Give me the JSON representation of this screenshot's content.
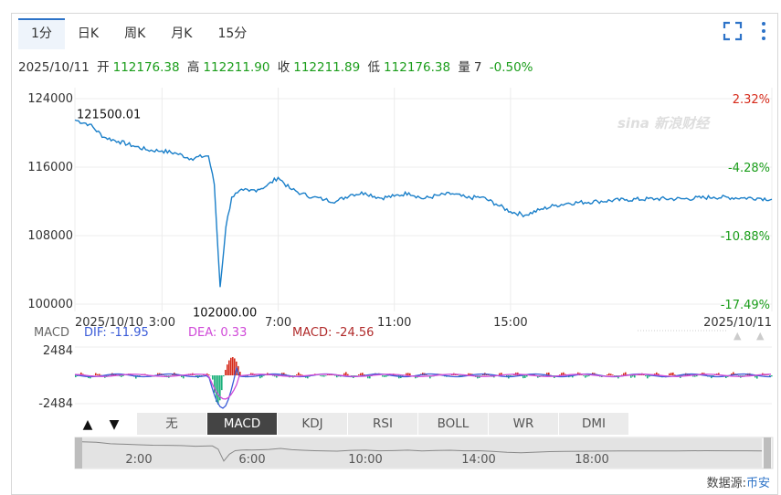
{
  "tabs": [
    {
      "label": "1分",
      "active": true
    },
    {
      "label": "日K",
      "active": false
    },
    {
      "label": "周K",
      "active": false
    },
    {
      "label": "月K",
      "active": false
    },
    {
      "label": "15分",
      "active": false
    }
  ],
  "icons": {
    "fullscreen": "fullscreen-icon",
    "more": "more-vertical-icon"
  },
  "info": {
    "date": "2025/10/11",
    "open_label": "开",
    "open": "112176.38",
    "high_label": "高",
    "high": "112211.90",
    "close_label": "收",
    "close": "112211.89",
    "low_label": "低",
    "low": "112176.38",
    "volume_label": "量",
    "volume": "7",
    "change": "-0.50%"
  },
  "colors": {
    "line": "#1a7fc9",
    "up": "#d62a1a",
    "down": "#1a9d1a",
    "dif": "#3a5bd8",
    "dea": "#d04ad8",
    "macd": "#b02a2a"
  },
  "watermark": "sina 新浪财经",
  "chart_data": {
    "type": "line",
    "x_ticks": [
      "2025/10/10",
      "3:00",
      "7:00",
      "11:00",
      "15:00",
      "2025/10/11"
    ],
    "y_ticks": [
      "124000",
      "116000",
      "108000",
      "100000"
    ],
    "y_right_ticks": [
      "2.32%",
      "-4.28%",
      "-10.88%",
      "-17.49%"
    ],
    "ylim": [
      100000,
      124000
    ],
    "annotations": {
      "max": "121500.01",
      "min": "102000.00"
    },
    "x_hours": [
      0,
      0.5,
      1,
      1.5,
      2,
      2.5,
      3,
      3.5,
      4,
      4.5,
      4.6,
      4.8,
      5.0,
      5.2,
      5.4,
      5.6,
      5.8,
      6.0,
      6.3,
      6.6,
      7.0,
      7.4,
      7.8,
      8.2,
      8.6,
      9.0,
      9.5,
      10.0,
      10.5,
      11.0,
      11.5,
      12.0,
      12.5,
      13.0,
      13.5,
      14.0,
      14.5,
      15.0,
      15.5,
      16.0,
      16.5,
      17.0,
      18.0,
      19.0,
      20.0,
      21.0,
      22.0,
      23.0,
      23.5,
      24.0
    ],
    "values": [
      121500,
      121000,
      119500,
      119000,
      118500,
      118000,
      117900,
      117600,
      117000,
      117300,
      117300,
      114000,
      102000,
      109000,
      112500,
      113000,
      113300,
      113200,
      113400,
      113800,
      114800,
      113500,
      112900,
      112500,
      112200,
      112000,
      112800,
      113000,
      112400,
      112600,
      113000,
      112300,
      112700,
      112900,
      112400,
      112500,
      111700,
      110800,
      110400,
      111000,
      111500,
      111800,
      112000,
      112200,
      112300,
      112300,
      112500,
      112400,
      112400,
      112250
    ]
  },
  "macd": {
    "label": "MACD",
    "dif_label": "DIF: -11.95",
    "dea_label": "DEA: 0.33",
    "macd_label": "MACD: -24.56",
    "y_ticks": [
      "2484",
      "-2484"
    ],
    "ylim": [
      -2484,
      2484
    ]
  },
  "indicator_buttons": [
    {
      "label": "无",
      "active": false
    },
    {
      "label": "MACD",
      "active": true
    },
    {
      "label": "KDJ",
      "active": false
    },
    {
      "label": "RSI",
      "active": false
    },
    {
      "label": "BOLL",
      "active": false
    },
    {
      "label": "WR",
      "active": false
    },
    {
      "label": "DMI",
      "active": false
    }
  ],
  "navigator": {
    "ticks": [
      "2:00",
      "6:00",
      "10:00",
      "14:00",
      "18:00"
    ]
  },
  "source": {
    "label": "数据源:",
    "name": "币安"
  }
}
